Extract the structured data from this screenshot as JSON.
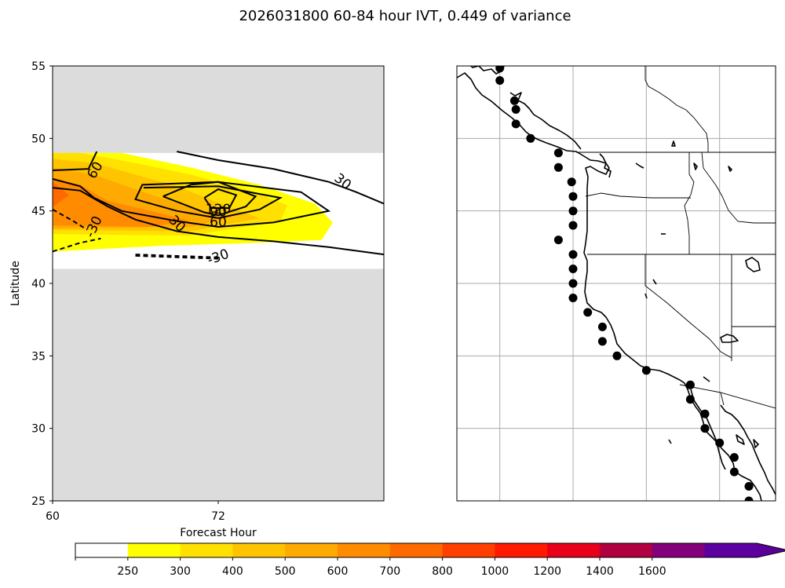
{
  "title": "2026031800 60-84 hour IVT, 0.449 of variance",
  "chart_data": {
    "type": "contour",
    "panel": "left",
    "xlabel": "Forecast Hour",
    "ylabel": "Latitude",
    "xlim": [
      60,
      84
    ],
    "ylim": [
      25,
      55
    ],
    "xticks": [
      60,
      72
    ],
    "yticks": [
      25,
      30,
      35,
      40,
      45,
      50,
      55
    ],
    "xtick_labels": [
      "60",
      "72"
    ],
    "ytick_labels": [
      "25",
      "30",
      "35",
      "40",
      "45",
      "50",
      "55"
    ],
    "valid_lat_range": [
      41,
      49
    ],
    "missing_color": "#dcdcdc",
    "contour_labels": [
      {
        "text": "60",
        "hour": 63.1,
        "lat": 47.8,
        "rot": -60
      },
      {
        "text": "-30",
        "hour": 63.0,
        "lat": 43.9,
        "rot": -65
      },
      {
        "text": "-30",
        "hour": 72.0,
        "lat": 41.8,
        "rot": -20
      },
      {
        "text": "30",
        "hour": 69.0,
        "lat": 44.1,
        "rot": 45
      },
      {
        "text": "120",
        "hour": 72.0,
        "lat": 45.1,
        "rot": 0
      },
      {
        "text": "90",
        "hour": 72.0,
        "lat": 44.9,
        "rot": 0
      },
      {
        "text": "60",
        "hour": 72.0,
        "lat": 44.2,
        "rot": 0
      },
      {
        "text": "30",
        "hour": 81.0,
        "lat": 47.0,
        "rot": 38
      }
    ],
    "contours": [
      {
        "level": 30,
        "points": [
          [
            60,
            46.6
          ],
          [
            62,
            46.4
          ],
          [
            64,
            45.3
          ],
          [
            66,
            44.4
          ],
          [
            69,
            43.6
          ],
          [
            72,
            43.2
          ],
          [
            76,
            42.9
          ],
          [
            80,
            42.5
          ],
          [
            84,
            42.0
          ]
        ]
      },
      {
        "level": 30,
        "points": [
          [
            69,
            49.1
          ],
          [
            72,
            48.5
          ],
          [
            76,
            47.9
          ],
          [
            80,
            47.0
          ],
          [
            82,
            46.3
          ],
          [
            84,
            45.5
          ]
        ]
      },
      {
        "level": 60,
        "points": [
          [
            60,
            47.8
          ],
          [
            62.6,
            47.9
          ],
          [
            63.2,
            49.1
          ]
        ]
      },
      {
        "level": 60,
        "points": [
          [
            60,
            47.2
          ],
          [
            62,
            46.7
          ],
          [
            63,
            45.9
          ],
          [
            65,
            45.0
          ],
          [
            69,
            44.3
          ],
          [
            72,
            43.9
          ],
          [
            76,
            44.2
          ],
          [
            80,
            45.0
          ],
          [
            78,
            46.3
          ],
          [
            72,
            47.0
          ],
          [
            66.5,
            46.8
          ],
          [
            66,
            45.8
          ],
          [
            69,
            45.0
          ],
          [
            72,
            44.5
          ],
          [
            75,
            45.1
          ],
          [
            76.5,
            45.9
          ],
          [
            72,
            46.7
          ],
          [
            66.6,
            46.6
          ]
        ]
      },
      {
        "level": 120,
        "points": [
          [
            68,
            46.0
          ],
          [
            71,
            44.9
          ],
          [
            72,
            44.7
          ],
          [
            74,
            45.3
          ],
          [
            74.7,
            46.0
          ],
          [
            72,
            47.0
          ],
          [
            70,
            46.8
          ],
          [
            68,
            46.0
          ]
        ]
      },
      {
        "level": 90,
        "points": [
          [
            71,
            45.9
          ],
          [
            72,
            46.5
          ],
          [
            73.3,
            46.1
          ],
          [
            72.8,
            45.2
          ],
          [
            71.5,
            45.2
          ],
          [
            71,
            45.9
          ]
        ]
      },
      {
        "level": -30,
        "points": [
          [
            60,
            45.1
          ],
          [
            61.5,
            44.3
          ],
          [
            62.5,
            43.7
          ]
        ]
      },
      {
        "level": -30,
        "points": [
          [
            60,
            42.2
          ],
          [
            62,
            42.8
          ],
          [
            63.5,
            43.1
          ]
        ]
      },
      {
        "level": -30,
        "points": [
          [
            66,
            42.0
          ],
          [
            72,
            41.8
          ]
        ]
      },
      {
        "level": -30,
        "points": [
          [
            66,
            41.9
          ],
          [
            72,
            41.7
          ]
        ]
      }
    ],
    "fill_regions": [
      {
        "level": 250,
        "points": [
          [
            60,
            49
          ],
          [
            65,
            49
          ],
          [
            70,
            48
          ],
          [
            75,
            46.8
          ],
          [
            79,
            45.5
          ],
          [
            80.3,
            44.2
          ],
          [
            79.5,
            43.0
          ],
          [
            75,
            42.8
          ],
          [
            68,
            42.6
          ],
          [
            60,
            42.2
          ]
        ]
      },
      {
        "level": 300,
        "points": [
          [
            60,
            49
          ],
          [
            62,
            49
          ],
          [
            66,
            48.3
          ],
          [
            70,
            47.5
          ],
          [
            74,
            46.5
          ],
          [
            77,
            45.4
          ],
          [
            76.5,
            44.3
          ],
          [
            70,
            43.3
          ],
          [
            60,
            43.4
          ]
        ]
      },
      {
        "level": 400,
        "points": [
          [
            60,
            48.6
          ],
          [
            63,
            48.3
          ],
          [
            66,
            47.5
          ],
          [
            69,
            46.7
          ],
          [
            73,
            45.2
          ],
          [
            75,
            44.5
          ],
          [
            70,
            43.6
          ],
          [
            60,
            43.7
          ]
        ]
      },
      {
        "level": 500,
        "points": [
          [
            60,
            48.0
          ],
          [
            63,
            47.5
          ],
          [
            66,
            46.5
          ],
          [
            70,
            45.2
          ],
          [
            73,
            44.6
          ],
          [
            70,
            43.9
          ],
          [
            60,
            43.8
          ]
        ]
      },
      {
        "level": 600,
        "points": [
          [
            60,
            47.3
          ],
          [
            62,
            46.8
          ],
          [
            64,
            45.7
          ],
          [
            68,
            44.8
          ],
          [
            70,
            44.3
          ],
          [
            67,
            43.9
          ],
          [
            60,
            44.0
          ]
        ]
      },
      {
        "level": 700,
        "points": [
          [
            60,
            47.0
          ],
          [
            61.2,
            46.1
          ],
          [
            60.2,
            45.4
          ],
          [
            60,
            45.2
          ]
        ]
      }
    ]
  },
  "colorbar": {
    "tick_labels": [
      "250",
      "300",
      "400",
      "500",
      "600",
      "700",
      "800",
      "1000",
      "1200",
      "1400",
      "1600"
    ],
    "colors": [
      "#ffffff",
      "#ffff00",
      "#ffe000",
      "#ffc400",
      "#ffaa00",
      "#ff8c00",
      "#ff6a00",
      "#ff4000",
      "#ff1a00",
      "#e8001a",
      "#b00040",
      "#82007a",
      "#5c00a0",
      "#5a0099"
    ]
  },
  "map": {
    "gridlines_lon": [
      -130,
      -125,
      -120,
      -115
    ],
    "gridlines_lat": [
      30,
      35,
      40,
      45,
      50
    ],
    "points": [
      {
        "lat": 54.85,
        "lon": -130.0
      },
      {
        "lat": 54.0,
        "lon": -130.0
      },
      {
        "lat": 52.6,
        "lon": -129.0
      },
      {
        "lat": 52.0,
        "lon": -128.9
      },
      {
        "lat": 51.0,
        "lon": -128.9
      },
      {
        "lat": 50.0,
        "lon": -127.9
      },
      {
        "lat": 49.0,
        "lon": -126.0
      },
      {
        "lat": 48.0,
        "lon": -126.0
      },
      {
        "lat": 47.0,
        "lon": -125.1
      },
      {
        "lat": 46.0,
        "lon": -125.0
      },
      {
        "lat": 45.0,
        "lon": -125.0
      },
      {
        "lat": 44.0,
        "lon": -125.0
      },
      {
        "lat": 43.0,
        "lon": -126.0
      },
      {
        "lat": 42.0,
        "lon": -125.0
      },
      {
        "lat": 41.0,
        "lon": -125.0
      },
      {
        "lat": 40.0,
        "lon": -125.0
      },
      {
        "lat": 39.0,
        "lon": -125.0
      },
      {
        "lat": 38.0,
        "lon": -124.0
      },
      {
        "lat": 37.0,
        "lon": -123.0
      },
      {
        "lat": 36.0,
        "lon": -123.0
      },
      {
        "lat": 35.0,
        "lon": -122.0
      },
      {
        "lat": 34.0,
        "lon": -120.0
      },
      {
        "lat": 33.0,
        "lon": -117.0
      },
      {
        "lat": 32.0,
        "lon": -117.0
      },
      {
        "lat": 31.0,
        "lon": -116.0
      },
      {
        "lat": 30.0,
        "lon": -116.0
      },
      {
        "lat": 29.0,
        "lon": -115.0
      },
      {
        "lat": 28.0,
        "lon": -114.0
      },
      {
        "lat": 27.0,
        "lon": -114.0
      },
      {
        "lat": 26.0,
        "lon": -113.0
      },
      {
        "lat": 25.0,
        "lon": -113.0
      }
    ]
  }
}
